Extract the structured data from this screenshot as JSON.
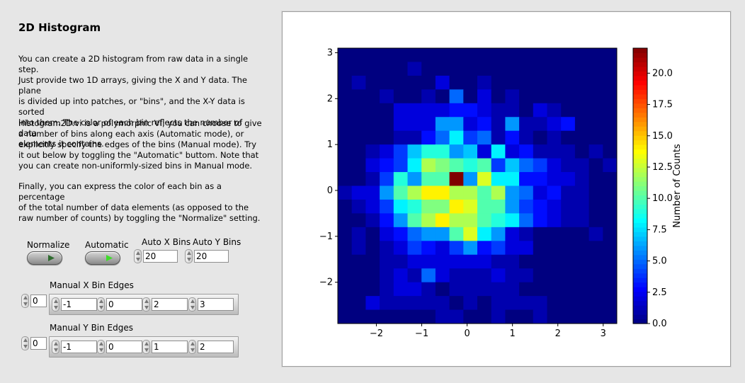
{
  "page": {
    "title": "2D Histogram",
    "paragraphs": [
      [
        "You can create a 2D histogram from raw data in a single step.",
        "Just provide two 1D arrays, giving the X and Y data.  The plane",
        "is divided up into patches, or \"bins\", and the X-Y data is sorted",
        "into them.  The color of each bin reflects the number of data",
        "elements it contains."
      ],
      [
        "Histogram2D.vi is a polymorphic VI; you can choose to give",
        "a number of bins along each axis (Automatic mode), or",
        "explicitly specify the edges of the bins (Manual mode).  Try",
        "it out below by toggling the \"Automatic\" buttom.  Note that",
        "you can create non-uniformly-sized bins in Manual mode."
      ],
      [
        "Finally, you can express the color of each bin as a percentage",
        "of the total number of data elements (as opposed to the",
        "raw number of counts) by toggling the \"Normalize\" setting."
      ]
    ]
  },
  "controls": {
    "normalize": {
      "label": "Normalize",
      "on": false
    },
    "automatic": {
      "label": "Automatic",
      "on": true
    },
    "auto_x_bins": {
      "label": "Auto X Bins",
      "value": "20"
    },
    "auto_y_bins": {
      "label": "Auto Y Bins",
      "value": "20"
    },
    "manual_x": {
      "label": "Manual X Bin Edges",
      "index": "0",
      "values": [
        "-1",
        "0",
        "2",
        "3"
      ]
    },
    "manual_y": {
      "label": "Manual Y Bin Edges",
      "index": "0",
      "values": [
        "-1",
        "0",
        "1",
        "2"
      ]
    }
  },
  "colors": {
    "led_on": "#3fdc2a",
    "led_off": "#2f6b2f"
  },
  "chart_data": {
    "type": "heatmap",
    "x_edges_range": [
      -2.85,
      3.3
    ],
    "y_edges_range": [
      -2.9,
      3.1
    ],
    "xticks": [
      -2,
      -1,
      0,
      1,
      2,
      3
    ],
    "yticks": [
      -2,
      -1,
      0,
      1,
      2,
      3
    ],
    "xtick_labels": [
      "−2",
      "−1",
      "0",
      "1",
      "2",
      "3"
    ],
    "ytick_labels": [
      "−2",
      "−1",
      "0",
      "1",
      "2",
      "3"
    ],
    "colorbar": {
      "label": "Number of Counts",
      "range": [
        0,
        22
      ],
      "ticks": [
        0,
        2.5,
        5,
        7.5,
        10,
        12.5,
        15,
        17.5,
        20
      ],
      "tick_labels": [
        "0.0",
        "2.5",
        "5.0",
        "7.5",
        "10.0",
        "12.5",
        "15.0",
        "17.5",
        "20.0"
      ],
      "colormap": "jet"
    },
    "rows_top_to_bottom": [
      [
        0,
        0,
        0,
        0,
        0,
        0,
        0,
        0,
        0,
        0,
        0,
        0,
        0,
        0,
        0,
        0,
        0,
        0,
        0,
        0
      ],
      [
        0,
        0,
        0,
        0,
        0,
        1,
        0,
        0,
        0,
        0,
        0,
        0,
        0,
        0,
        0,
        0,
        0,
        0,
        0,
        0
      ],
      [
        0,
        1,
        0,
        0,
        0,
        0,
        0,
        2,
        0,
        0,
        1,
        0,
        0,
        0,
        0,
        0,
        0,
        0,
        0,
        0
      ],
      [
        0,
        0,
        0,
        1,
        0,
        0,
        1,
        0,
        5,
        0,
        2,
        0,
        1,
        0,
        0,
        0,
        0,
        0,
        0,
        0
      ],
      [
        0,
        0,
        0,
        0,
        2,
        2,
        2,
        2,
        3,
        3,
        2,
        1,
        1,
        0,
        2,
        1,
        0,
        0,
        0,
        0
      ],
      [
        0,
        0,
        0,
        0,
        2,
        2,
        2,
        6,
        6,
        2,
        3,
        1,
        6,
        1,
        1,
        2,
        3,
        0,
        0,
        0
      ],
      [
        0,
        0,
        0,
        0,
        1,
        1,
        3,
        5,
        8,
        4,
        5,
        1,
        3,
        1,
        0,
        1,
        0,
        0,
        0,
        0
      ],
      [
        0,
        0,
        1,
        2,
        4,
        7,
        9,
        9,
        6,
        7,
        2,
        8,
        2,
        3,
        1,
        1,
        1,
        0,
        1,
        0
      ],
      [
        0,
        0,
        2,
        3,
        4,
        8,
        12,
        11,
        10,
        9,
        10,
        4,
        7,
        5,
        4,
        2,
        1,
        1,
        0,
        1
      ],
      [
        0,
        0,
        1,
        4,
        9,
        6,
        10,
        10,
        22,
        6,
        13,
        8,
        8,
        3,
        3,
        2,
        2,
        1,
        0,
        0
      ],
      [
        1,
        2,
        2,
        6,
        10,
        12,
        14,
        14,
        12,
        12,
        10,
        12,
        6,
        5,
        2,
        3,
        1,
        1,
        0,
        0
      ],
      [
        0,
        1,
        2,
        4,
        8,
        9,
        11,
        11,
        14,
        13,
        10,
        10,
        6,
        4,
        3,
        2,
        1,
        1,
        0,
        0
      ],
      [
        0,
        0,
        1,
        3,
        6,
        10,
        12,
        14,
        12,
        12,
        10,
        9,
        8,
        5,
        3,
        2,
        1,
        1,
        0,
        0
      ],
      [
        0,
        1,
        0,
        2,
        3,
        5,
        6,
        6,
        10,
        13,
        8,
        6,
        2,
        1,
        0,
        0,
        0,
        0,
        1,
        0
      ],
      [
        0,
        1,
        0,
        1,
        2,
        4,
        3,
        2,
        4,
        6,
        3,
        4,
        2,
        2,
        0,
        0,
        0,
        0,
        0,
        0
      ],
      [
        0,
        0,
        0,
        1,
        1,
        2,
        2,
        2,
        2,
        2,
        2,
        1,
        1,
        0,
        0,
        0,
        0,
        0,
        0,
        0
      ],
      [
        0,
        0,
        0,
        1,
        2,
        1,
        5,
        2,
        1,
        1,
        1,
        2,
        1,
        1,
        0,
        0,
        0,
        0,
        0,
        0
      ],
      [
        0,
        0,
        0,
        1,
        2,
        2,
        1,
        0,
        1,
        1,
        1,
        1,
        1,
        0,
        0,
        0,
        0,
        0,
        0,
        0
      ],
      [
        0,
        0,
        2,
        1,
        1,
        1,
        1,
        1,
        0,
        1,
        0,
        1,
        1,
        1,
        1,
        0,
        0,
        0,
        0,
        0
      ],
      [
        0,
        0,
        0,
        0,
        0,
        0,
        0,
        1,
        1,
        0,
        0,
        1,
        0,
        0,
        1,
        0,
        0,
        0,
        0,
        0
      ]
    ]
  }
}
